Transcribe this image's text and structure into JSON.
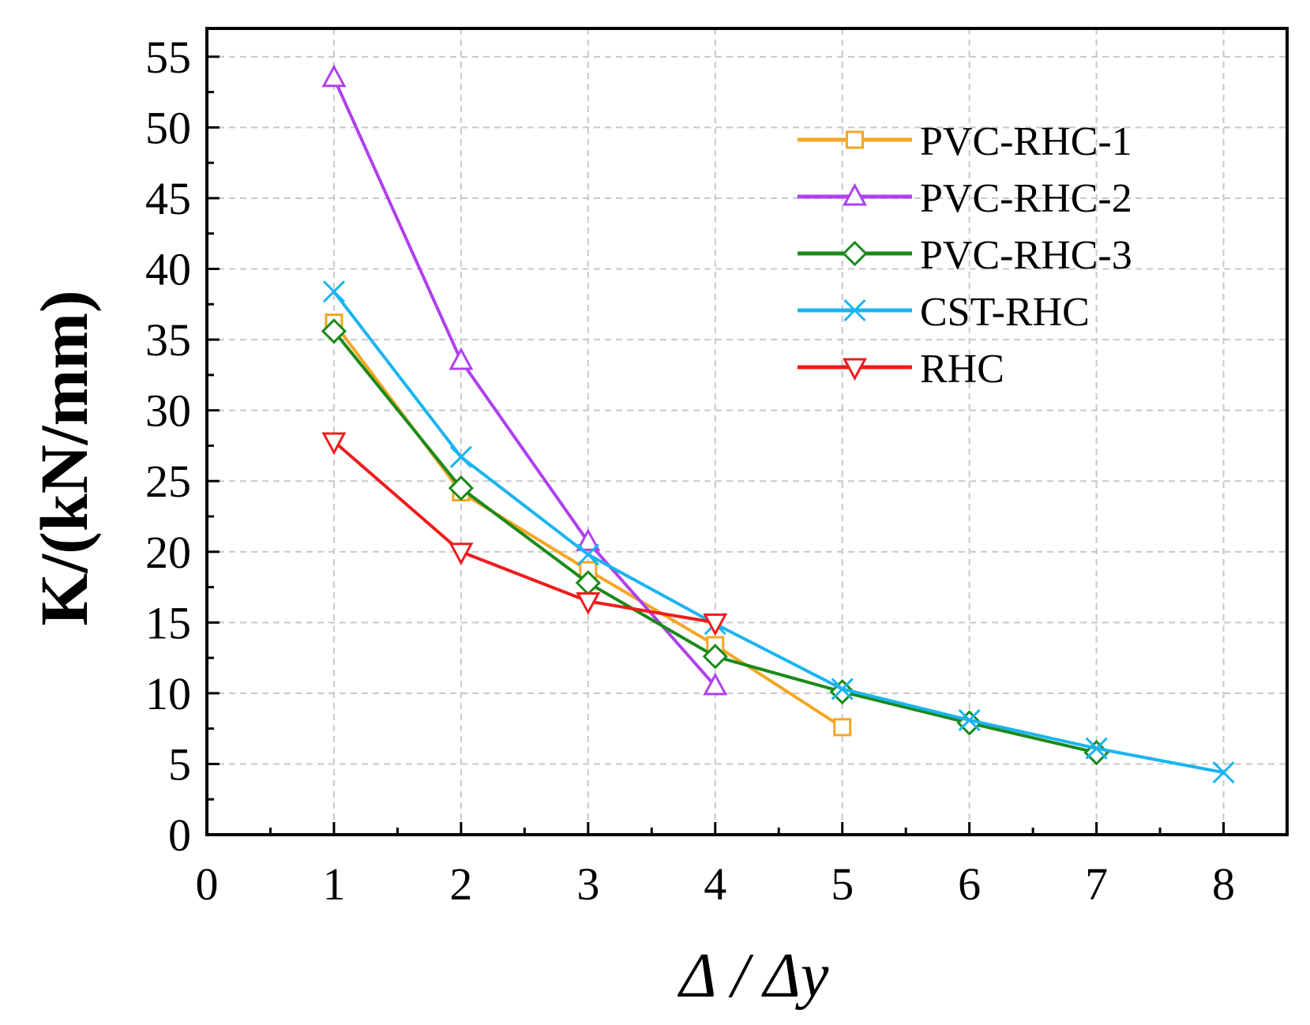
{
  "chart_data": {
    "type": "line",
    "xlabel": "Δ / Δy",
    "ylabel": "K/(kN/mm)",
    "xlim": [
      0,
      8.5
    ],
    "ylim": [
      0,
      57
    ],
    "x_ticks": [
      0,
      1,
      2,
      3,
      4,
      5,
      6,
      7,
      8
    ],
    "y_ticks": [
      0,
      5,
      10,
      15,
      20,
      25,
      30,
      35,
      40,
      45,
      50,
      55
    ],
    "grid": true,
    "legend_position": "top-right",
    "series": [
      {
        "name": "PVC-RHC-1",
        "color": "#f5a623",
        "marker": "square",
        "x": [
          1,
          2,
          3,
          4,
          5
        ],
        "y": [
          36.2,
          24.2,
          18.7,
          13.4,
          7.6
        ]
      },
      {
        "name": "PVC-RHC-2",
        "color": "#b040ee",
        "marker": "triangle-up",
        "x": [
          1,
          2,
          3,
          4
        ],
        "y": [
          53.5,
          33.5,
          20.7,
          10.5
        ]
      },
      {
        "name": "PVC-RHC-3",
        "color": "#1a8a1a",
        "marker": "diamond",
        "x": [
          1,
          2,
          3,
          4,
          5,
          6,
          7
        ],
        "y": [
          35.6,
          24.5,
          17.8,
          12.6,
          10.1,
          7.9,
          5.8
        ]
      },
      {
        "name": "CST-RHC",
        "color": "#1ab4f0",
        "marker": "cross",
        "x": [
          1,
          2,
          3,
          4,
          5,
          6,
          7,
          8
        ],
        "y": [
          38.4,
          26.7,
          19.8,
          14.9,
          10.3,
          8.1,
          6.1,
          4.4
        ]
      },
      {
        "name": "RHC",
        "color": "#ee1c1c",
        "marker": "triangle-down",
        "x": [
          1,
          2,
          3,
          4
        ],
        "y": [
          27.8,
          20.0,
          16.5,
          15.0
        ]
      }
    ]
  }
}
